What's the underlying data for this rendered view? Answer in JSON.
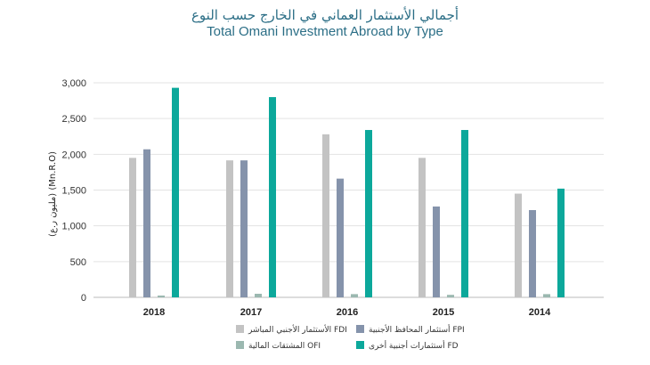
{
  "header": {
    "title_ar": "أجمالي الأستثمار العماني في الخارج حسب النوع",
    "title_en": "Total Omani Investment Abroad by Type"
  },
  "chart_data": {
    "type": "bar",
    "ylabel": "(مليون ر.ع) (Mn.R.O)",
    "ylim": [
      0,
      3000
    ],
    "yticks": [
      "0",
      "500",
      "1,000",
      "1,500",
      "2,000",
      "2,500",
      "3,000"
    ],
    "grid": true,
    "legend_position": "bottom-center",
    "categories": [
      "2018",
      "2017",
      "2016",
      "2015",
      "2014"
    ],
    "series": [
      {
        "name": "الأستثمار الأجنبي المباشر FDI",
        "color": "#c3c3c3",
        "values": [
          1950,
          1915,
          2280,
          1950,
          1450
        ]
      },
      {
        "name": "أستثمار المحافظ الأجنبية FPI",
        "color": "#8593ab",
        "values": [
          2070,
          1915,
          1660,
          1270,
          1220
        ]
      },
      {
        "name": "المشتقات المالية OFI",
        "color": "#9bb8b0",
        "values": [
          25,
          50,
          45,
          35,
          45
        ]
      },
      {
        "name": "أستثمارات أجنبية أخرى FD",
        "color": "#0ca89b",
        "values": [
          2930,
          2800,
          2340,
          2340,
          1520
        ]
      }
    ]
  }
}
